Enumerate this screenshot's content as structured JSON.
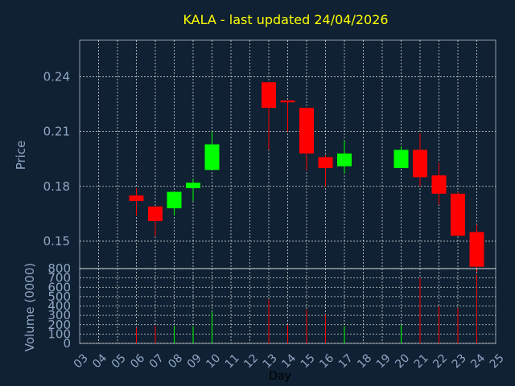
{
  "title": "KALA - last updated 24/04/2026",
  "colors": {
    "background": "#0f2132",
    "title": "#ffff00",
    "axis_text": "#8fa6c4",
    "grid": "#ffffff",
    "up": "#00ff00",
    "down": "#ff0000"
  },
  "chart_data": [
    {
      "type": "candlestick",
      "ylabel": "Price",
      "ylim": [
        0.135,
        0.26
      ],
      "yticks": [
        "0.15",
        "0.18",
        "0.21",
        "0.24"
      ],
      "ytick_values": [
        0.15,
        0.18,
        0.21,
        0.24
      ],
      "grid": true,
      "candles": [
        {
          "day": 6,
          "open": 0.175,
          "close": 0.172,
          "high": 0.179,
          "low": 0.164
        },
        {
          "day": 7,
          "open": 0.169,
          "close": 0.161,
          "high": 0.169,
          "low": 0.153
        },
        {
          "day": 8,
          "open": 0.168,
          "close": 0.177,
          "high": 0.177,
          "low": 0.164
        },
        {
          "day": 9,
          "open": 0.179,
          "close": 0.182,
          "high": 0.184,
          "low": 0.172
        },
        {
          "day": 10,
          "open": 0.189,
          "close": 0.203,
          "high": 0.21,
          "low": 0.189
        },
        {
          "day": 13,
          "open": 0.237,
          "close": 0.223,
          "high": 0.237,
          "low": 0.2
        },
        {
          "day": 14,
          "open": 0.227,
          "close": 0.226,
          "high": 0.227,
          "low": 0.21
        },
        {
          "day": 15,
          "open": 0.223,
          "close": 0.198,
          "high": 0.223,
          "low": 0.189
        },
        {
          "day": 16,
          "open": 0.196,
          "close": 0.19,
          "high": 0.197,
          "low": 0.18
        },
        {
          "day": 17,
          "open": 0.191,
          "close": 0.198,
          "high": 0.205,
          "low": 0.187
        },
        {
          "day": 20,
          "open": 0.19,
          "close": 0.2,
          "high": 0.202,
          "low": 0.19
        },
        {
          "day": 21,
          "open": 0.2,
          "close": 0.185,
          "high": 0.209,
          "low": 0.18
        },
        {
          "day": 22,
          "open": 0.186,
          "close": 0.176,
          "high": 0.193,
          "low": 0.17
        },
        {
          "day": 23,
          "open": 0.176,
          "close": 0.153,
          "high": 0.177,
          "low": 0.153
        },
        {
          "day": 24,
          "open": 0.155,
          "close": 0.136,
          "high": 0.159,
          "low": 0.133
        }
      ]
    },
    {
      "type": "bar",
      "ylabel": "Volume (0000)",
      "xlabel": "Day",
      "ylim": [
        0,
        800
      ],
      "yticks": [
        "0",
        "100",
        "200",
        "300",
        "400",
        "500",
        "600",
        "700",
        "800"
      ],
      "ytick_values": [
        0,
        100,
        200,
        300,
        400,
        500,
        600,
        700,
        800
      ],
      "x": [
        "03",
        "04",
        "05",
        "06",
        "07",
        "08",
        "09",
        "10",
        "11",
        "12",
        "13",
        "14",
        "15",
        "16",
        "17",
        "18",
        "19",
        "20",
        "21",
        "22",
        "23",
        "24",
        "25"
      ],
      "xlim": [
        3,
        25
      ],
      "grid": true,
      "bars": [
        {
          "day": 6,
          "value": 170,
          "up": false
        },
        {
          "day": 7,
          "value": 185,
          "up": false
        },
        {
          "day": 8,
          "value": 190,
          "up": true
        },
        {
          "day": 9,
          "value": 185,
          "up": true
        },
        {
          "day": 10,
          "value": 340,
          "up": true
        },
        {
          "day": 13,
          "value": 470,
          "up": false
        },
        {
          "day": 14,
          "value": 200,
          "up": false
        },
        {
          "day": 15,
          "value": 360,
          "up": false
        },
        {
          "day": 16,
          "value": 310,
          "up": false
        },
        {
          "day": 17,
          "value": 185,
          "up": true
        },
        {
          "day": 20,
          "value": 200,
          "up": true
        },
        {
          "day": 21,
          "value": 700,
          "up": false
        },
        {
          "day": 22,
          "value": 400,
          "up": false
        },
        {
          "day": 23,
          "value": 380,
          "up": false
        },
        {
          "day": 24,
          "value": 740,
          "up": false
        }
      ]
    }
  ]
}
